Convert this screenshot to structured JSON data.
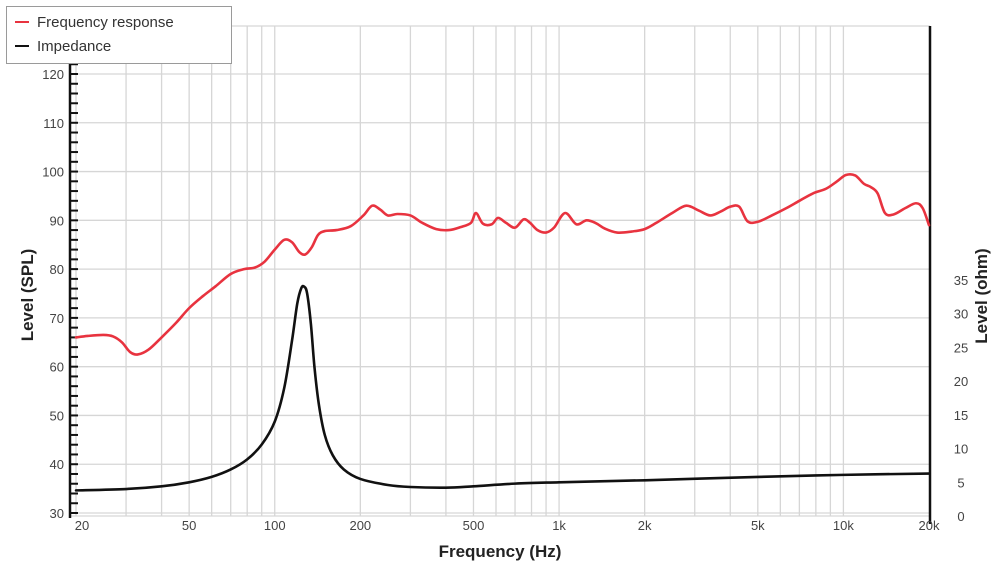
{
  "chart_data": {
    "type": "line",
    "title": "",
    "xlabel": "Frequency (Hz)",
    "ylabel": "Level (SPL)",
    "y2label": "Level (ohm)",
    "xscale": "log",
    "xlim": [
      20,
      20000
    ],
    "ylim": [
      30,
      120
    ],
    "y2lim": [
      0,
      35
    ],
    "grid": true,
    "legend_position": "top-left",
    "x_tick_labels": [
      "20",
      "50",
      "100",
      "200",
      "500",
      "1k",
      "2k",
      "5k",
      "10k",
      "20k"
    ],
    "x_tick_values": [
      20,
      50,
      100,
      200,
      500,
      1000,
      2000,
      5000,
      10000,
      20000
    ],
    "y_tick_labels": [
      "30",
      "40",
      "50",
      "60",
      "70",
      "80",
      "90",
      "100",
      "110",
      "120"
    ],
    "y2_tick_labels": [
      "0",
      "5",
      "10",
      "15",
      "20",
      "25",
      "30",
      "35"
    ],
    "series": [
      {
        "name": "Frequency response",
        "axis": "left",
        "color": "#e8333f",
        "x": [
          20,
          22,
          25,
          27,
          29,
          31,
          33,
          36,
          40,
          45,
          50,
          56,
          62,
          70,
          78,
          85,
          92,
          100,
          108,
          115,
          122,
          128,
          135,
          142,
          150,
          165,
          185,
          205,
          220,
          235,
          250,
          270,
          300,
          330,
          370,
          410,
          450,
          490,
          510,
          540,
          580,
          610,
          650,
          700,
          750,
          790,
          840,
          900,
          960,
          1050,
          1150,
          1250,
          1350,
          1450,
          1600,
          1800,
          2000,
          2200,
          2500,
          2800,
          3100,
          3400,
          3700,
          4000,
          4300,
          4600,
          5000,
          5600,
          6300,
          7000,
          7800,
          8700,
          9500,
          10200,
          11000,
          11800,
          12500,
          13200,
          14000,
          15000,
          16500,
          18000,
          19000,
          20000
        ],
        "values": [
          66.0,
          66.3,
          66.5,
          66.2,
          65.0,
          63.0,
          62.5,
          63.5,
          66.0,
          69.0,
          72.0,
          74.5,
          76.5,
          79.0,
          80.0,
          80.3,
          81.5,
          84.0,
          86.0,
          85.5,
          83.5,
          83.0,
          84.5,
          87.0,
          87.8,
          88.0,
          88.8,
          91.0,
          93.0,
          92.2,
          91.0,
          91.3,
          91.0,
          89.5,
          88.2,
          88.0,
          88.6,
          89.5,
          91.5,
          89.3,
          89.2,
          90.5,
          89.5,
          88.5,
          90.2,
          89.5,
          88.0,
          87.5,
          88.5,
          91.5,
          89.2,
          90.0,
          89.4,
          88.3,
          87.5,
          87.7,
          88.2,
          89.5,
          91.5,
          93.0,
          92.0,
          91.0,
          91.8,
          92.8,
          92.8,
          89.8,
          89.7,
          91.0,
          92.5,
          94.0,
          95.5,
          96.5,
          98.0,
          99.3,
          99.2,
          97.5,
          96.8,
          95.5,
          91.5,
          91.2,
          92.5,
          93.5,
          92.5,
          89.0
        ]
      },
      {
        "name": "Impedance",
        "axis": "right",
        "color": "#111111",
        "x": [
          20,
          30,
          40,
          50,
          60,
          70,
          80,
          90,
          100,
          108,
          115,
          120,
          124,
          127,
          130,
          134,
          138,
          143,
          150,
          160,
          175,
          200,
          250,
          300,
          400,
          500,
          700,
          1000,
          2000,
          5000,
          10000,
          20000
        ],
        "values": [
          3.8,
          4.0,
          4.4,
          5.0,
          5.8,
          6.9,
          8.4,
          10.6,
          14.0,
          19.0,
          26.0,
          31.5,
          33.8,
          34.0,
          33.0,
          28.5,
          22.0,
          16.5,
          12.0,
          9.0,
          6.9,
          5.5,
          4.6,
          4.3,
          4.2,
          4.4,
          4.8,
          5.0,
          5.3,
          5.8,
          6.1,
          6.3
        ]
      }
    ]
  },
  "legend": {
    "items": [
      {
        "label": "Frequency response",
        "color": "#e8333f"
      },
      {
        "label": "Impedance",
        "color": "#111111"
      }
    ]
  },
  "axes": {
    "x_title": "Frequency (Hz)",
    "y_title": "Level (SPL)",
    "y2_title": "Level (ohm)"
  }
}
